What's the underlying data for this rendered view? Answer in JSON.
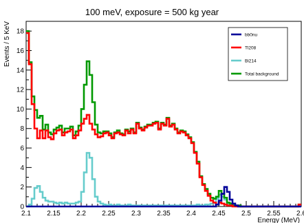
{
  "chart_data": {
    "type": "line",
    "title": "100 meV, exposure = 500 kg year",
    "xlabel": "Energy (MeV)",
    "ylabel": "Events / 5 KeV",
    "xlim": [
      2.1,
      2.6
    ],
    "ylim": [
      0,
      19
    ],
    "xticks": [
      "2.1",
      "2.15",
      "2.2",
      "2.25",
      "2.3",
      "2.35",
      "2.4",
      "2.45",
      "2.5",
      "2.55",
      "2.6"
    ],
    "yticks": [
      "0",
      "2",
      "4",
      "6",
      "8",
      "10",
      "12",
      "14",
      "16",
      "18"
    ],
    "legend_position": "top-right",
    "x": [
      2.1,
      2.105,
      2.11,
      2.115,
      2.12,
      2.125,
      2.13,
      2.135,
      2.14,
      2.145,
      2.15,
      2.155,
      2.16,
      2.165,
      2.17,
      2.175,
      2.18,
      2.185,
      2.19,
      2.195,
      2.2,
      2.205,
      2.21,
      2.215,
      2.22,
      2.225,
      2.23,
      2.235,
      2.24,
      2.245,
      2.25,
      2.255,
      2.26,
      2.265,
      2.27,
      2.275,
      2.28,
      2.285,
      2.29,
      2.295,
      2.3,
      2.305,
      2.31,
      2.315,
      2.32,
      2.325,
      2.33,
      2.335,
      2.34,
      2.345,
      2.35,
      2.355,
      2.36,
      2.365,
      2.37,
      2.375,
      2.38,
      2.385,
      2.39,
      2.395,
      2.4,
      2.405,
      2.41,
      2.415,
      2.42,
      2.425,
      2.43,
      2.435,
      2.44,
      2.445,
      2.45,
      2.455,
      2.46,
      2.465,
      2.47,
      2.475,
      2.48,
      2.485,
      2.49,
      2.495,
      2.5,
      2.505,
      2.51,
      2.515,
      2.52,
      2.525,
      2.53,
      2.535,
      2.54,
      2.545,
      2.55,
      2.555,
      2.56,
      2.565,
      2.57,
      2.575,
      2.58,
      2.585,
      2.59,
      2.595
    ],
    "series": [
      {
        "name": "bb0nu",
        "color": "#000099",
        "values": [
          0,
          0,
          0,
          0,
          0,
          0,
          0,
          0,
          0,
          0,
          0,
          0,
          0,
          0,
          0,
          0,
          0,
          0,
          0,
          0,
          0,
          0,
          0,
          0,
          0,
          0,
          0,
          0,
          0,
          0,
          0,
          0,
          0,
          0,
          0,
          0,
          0,
          0,
          0,
          0,
          0,
          0,
          0,
          0,
          0,
          0,
          0,
          0,
          0,
          0,
          0,
          0,
          0,
          0,
          0,
          0,
          0,
          0,
          0,
          0,
          0,
          0,
          0,
          0,
          0,
          0,
          0,
          0,
          0,
          0.2,
          0.6,
          1.3,
          2.0,
          1.5,
          0.7,
          0.3,
          0.1,
          0,
          0,
          0,
          0,
          0,
          0,
          0,
          0,
          0,
          0,
          0,
          0,
          0,
          0,
          0,
          0,
          0,
          0,
          0,
          0,
          0,
          0,
          0
        ]
      },
      {
        "name": "Tl208",
        "color": "#ff0000",
        "values": [
          17.8,
          14.6,
          10.5,
          8.0,
          7.0,
          7.8,
          7.0,
          7.8,
          7.1,
          6.9,
          7.5,
          7.8,
          7.9,
          7.3,
          7.6,
          7.7,
          7.9,
          7.0,
          7.3,
          7.8,
          8.5,
          9.0,
          9.4,
          8.5,
          7.9,
          7.4,
          7.1,
          7.2,
          7.5,
          7.6,
          7.3,
          7.0,
          7.5,
          7.6,
          7.4,
          7.3,
          7.8,
          7.5,
          7.9,
          7.5,
          8.5,
          8.0,
          7.8,
          8.1,
          8.3,
          8.3,
          8.5,
          8.6,
          7.9,
          8.5,
          8.3,
          9.0,
          8.2,
          8.4,
          7.9,
          7.5,
          7.7,
          7.6,
          7.3,
          7.0,
          6.5,
          5.5,
          4.4,
          3.0,
          2.2,
          1.6,
          1.1,
          0.6,
          0.4,
          0.2,
          0.4,
          0.3,
          0.2,
          0.1,
          0.1,
          0,
          0,
          0,
          0,
          0,
          0,
          0,
          0,
          0,
          0,
          0,
          0,
          0,
          0,
          0,
          0,
          0,
          0,
          0,
          0,
          0,
          0,
          0,
          0,
          0.2
        ]
      },
      {
        "name": "Bi214",
        "color": "#66cccc",
        "values": [
          0,
          0.2,
          0.8,
          1.9,
          2.1,
          1.5,
          0.9,
          0.6,
          0.5,
          0.5,
          0.4,
          0.3,
          0.4,
          0.3,
          0.4,
          0.3,
          0.3,
          0.3,
          0.4,
          0.5,
          1.5,
          3.5,
          5.5,
          5.0,
          2.8,
          1.0,
          0.5,
          0.3,
          0.2,
          0.1,
          0.2,
          0.1,
          0.1,
          0.2,
          0.1,
          0.1,
          0.1,
          0.2,
          0.1,
          0.1,
          0.1,
          0.1,
          0.1,
          0.1,
          0.1,
          0.1,
          0.1,
          0.1,
          0.1,
          0.1,
          0.1,
          0.1,
          0.1,
          0.1,
          0.1,
          0.1,
          0.1,
          0.1,
          0.1,
          0.1,
          0.1,
          0.1,
          0.2,
          0.1,
          0.1,
          0.2,
          0.2,
          0.3,
          0.4,
          0.8,
          1.2,
          1.0,
          0.7,
          0.3,
          0.2,
          0.1,
          0.1,
          0.1,
          0,
          0,
          0,
          0,
          0,
          0,
          0,
          0,
          0,
          0,
          0,
          0,
          0,
          0,
          0,
          0,
          0,
          0,
          0,
          0,
          0,
          0
        ]
      },
      {
        "name": "Total background",
        "color": "#009900",
        "values": [
          18.0,
          14.8,
          11.3,
          9.9,
          9.1,
          9.3,
          7.9,
          8.4,
          7.6,
          7.4,
          7.9,
          8.1,
          8.3,
          7.6,
          8.0,
          8.0,
          8.2,
          7.3,
          7.7,
          8.3,
          10.0,
          12.5,
          14.9,
          13.5,
          10.7,
          8.4,
          7.6,
          7.5,
          7.7,
          7.7,
          7.5,
          7.1,
          7.6,
          7.8,
          7.5,
          7.4,
          7.9,
          7.7,
          8.0,
          7.6,
          8.6,
          8.1,
          7.9,
          8.2,
          8.4,
          8.4,
          8.6,
          8.7,
          8.0,
          8.6,
          8.4,
          9.1,
          8.3,
          8.5,
          8.0,
          7.6,
          7.8,
          7.7,
          7.4,
          7.1,
          6.6,
          5.6,
          4.6,
          3.1,
          2.3,
          1.8,
          1.3,
          0.9,
          0.8,
          1.0,
          1.6,
          1.3,
          0.9,
          0.4,
          0.3,
          0.1,
          0.1,
          0.1,
          0,
          0,
          0,
          0,
          0,
          0,
          0,
          0,
          0,
          0,
          0,
          0,
          0,
          0,
          0,
          0,
          0,
          0,
          0,
          0,
          0,
          0.2
        ]
      }
    ]
  }
}
